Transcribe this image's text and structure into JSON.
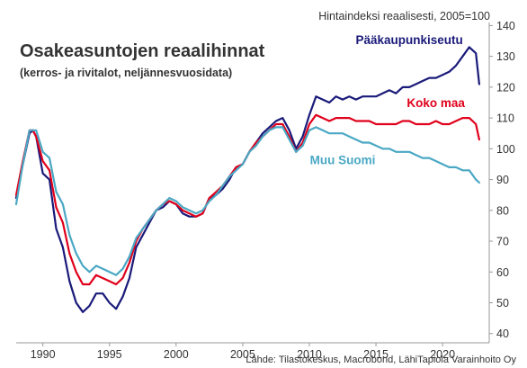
{
  "chart_data": {
    "type": "line",
    "title": "Osakeasuntojen reaalihinnat",
    "subtitle": "(kerros- ja rivitalot, neljännesvuosidata)",
    "ylabel": "Hintaindeksi reaalisesti, 2005=100",
    "source": "Lähde: Tilastokeskus, Macrobond, LähiTapiola Varainhoito Oy",
    "xlim": [
      1988,
      2023.5
    ],
    "ylim": [
      37,
      141
    ],
    "xticks": [
      1990,
      1995,
      2000,
      2005,
      2010,
      2015,
      2020
    ],
    "yticks": [
      40,
      50,
      60,
      70,
      80,
      90,
      100,
      110,
      120,
      130,
      140
    ],
    "y_axis_side": "right",
    "grid": false,
    "legend": "direct labels",
    "series": [
      {
        "name": "Pääkaupunkiseutu",
        "color": "#1a1a7a",
        "x": [
          1988.0,
          1988.5,
          1989.0,
          1989.25,
          1989.5,
          1990.0,
          1990.5,
          1991.0,
          1991.5,
          1992.0,
          1992.5,
          1993.0,
          1993.5,
          1994.0,
          1994.5,
          1995.0,
          1995.5,
          1996.0,
          1996.5,
          1997.0,
          1997.5,
          1998.0,
          1998.5,
          1999.0,
          1999.5,
          2000.0,
          2000.5,
          2001.0,
          2001.5,
          2002.0,
          2002.5,
          2003.0,
          2003.5,
          2004.0,
          2004.5,
          2005.0,
          2005.5,
          2006.0,
          2006.5,
          2007.0,
          2007.5,
          2008.0,
          2008.5,
          2009.0,
          2009.5,
          2010.0,
          2010.5,
          2011.0,
          2011.5,
          2012.0,
          2012.5,
          2013.0,
          2013.5,
          2014.0,
          2014.5,
          2015.0,
          2015.5,
          2016.0,
          2016.5,
          2017.0,
          2017.5,
          2018.0,
          2018.5,
          2019.0,
          2019.5,
          2020.0,
          2020.5,
          2021.0,
          2021.5,
          2022.0,
          2022.5,
          2022.75
        ],
        "values": [
          84,
          95,
          105,
          106,
          104,
          92,
          90,
          74,
          68,
          57,
          50,
          47,
          49,
          53,
          53,
          50,
          48,
          52,
          58,
          68,
          72,
          76,
          80,
          81,
          83,
          82,
          79,
          78,
          78,
          79,
          84,
          85,
          87,
          90,
          94,
          95,
          99,
          102,
          105,
          107,
          109,
          110,
          106,
          100,
          104,
          111,
          117,
          116,
          115,
          117,
          116,
          117,
          116,
          117,
          117,
          117,
          118,
          119,
          118,
          120,
          120,
          121,
          122,
          123,
          123,
          124,
          125,
          127,
          130,
          133,
          131,
          121
        ]
      },
      {
        "name": "Koko maa",
        "color": "#e0001b",
        "x": [
          1988.0,
          1988.5,
          1989.0,
          1989.25,
          1989.5,
          1990.0,
          1990.5,
          1991.0,
          1991.5,
          1992.0,
          1992.5,
          1993.0,
          1993.5,
          1994.0,
          1994.5,
          1995.0,
          1995.5,
          1996.0,
          1996.5,
          1997.0,
          1997.5,
          1998.0,
          1998.5,
          1999.0,
          1999.5,
          2000.0,
          2000.5,
          2001.0,
          2001.5,
          2002.0,
          2002.5,
          2003.0,
          2003.5,
          2004.0,
          2004.5,
          2005.0,
          2005.5,
          2006.0,
          2006.5,
          2007.0,
          2007.5,
          2008.0,
          2008.5,
          2009.0,
          2009.5,
          2010.0,
          2010.5,
          2011.0,
          2011.5,
          2012.0,
          2012.5,
          2013.0,
          2013.5,
          2014.0,
          2014.5,
          2015.0,
          2015.5,
          2016.0,
          2016.5,
          2017.0,
          2017.5,
          2018.0,
          2018.5,
          2019.0,
          2019.5,
          2020.0,
          2020.5,
          2021.0,
          2021.5,
          2022.0,
          2022.5,
          2022.75
        ],
        "values": [
          85,
          96,
          106,
          106,
          104,
          96,
          93,
          81,
          76,
          66,
          60,
          56,
          56,
          59,
          58,
          57,
          56,
          58,
          63,
          70,
          74,
          77,
          80,
          82,
          83,
          82,
          80,
          79,
          78,
          79,
          84,
          86,
          88,
          91,
          94,
          95,
          99,
          102,
          104,
          106,
          108,
          108,
          104,
          99,
          102,
          108,
          111,
          110,
          109,
          110,
          110,
          110,
          109,
          109,
          109,
          108,
          108,
          108,
          108,
          109,
          109,
          108,
          108,
          108,
          109,
          108,
          108,
          109,
          110,
          110,
          108,
          103
        ]
      },
      {
        "name": "Muu Suomi",
        "color": "#4aa8c4",
        "x": [
          1988.0,
          1988.5,
          1989.0,
          1989.25,
          1989.5,
          1990.0,
          1990.5,
          1991.0,
          1991.5,
          1992.0,
          1992.5,
          1993.0,
          1993.5,
          1994.0,
          1994.5,
          1995.0,
          1995.5,
          1996.0,
          1996.5,
          1997.0,
          1997.5,
          1998.0,
          1998.5,
          1999.0,
          1999.5,
          2000.0,
          2000.5,
          2001.0,
          2001.5,
          2002.0,
          2002.5,
          2003.0,
          2003.5,
          2004.0,
          2004.5,
          2005.0,
          2005.5,
          2006.0,
          2006.5,
          2007.0,
          2007.5,
          2008.0,
          2008.5,
          2009.0,
          2009.5,
          2010.0,
          2010.5,
          2011.0,
          2011.5,
          2012.0,
          2012.5,
          2013.0,
          2013.5,
          2014.0,
          2014.5,
          2015.0,
          2015.5,
          2016.0,
          2016.5,
          2017.0,
          2017.5,
          2018.0,
          2018.5,
          2019.0,
          2019.5,
          2020.0,
          2020.5,
          2021.0,
          2021.5,
          2022.0,
          2022.5,
          2022.75
        ],
        "values": [
          82,
          95,
          106,
          106,
          106,
          99,
          97,
          86,
          82,
          72,
          66,
          62,
          60,
          62,
          61,
          60,
          59,
          61,
          65,
          71,
          74,
          77,
          80,
          82,
          84,
          83,
          81,
          80,
          79,
          80,
          83,
          85,
          88,
          91,
          93,
          95,
          99,
          101,
          104,
          106,
          107,
          107,
          103,
          99,
          101,
          106,
          107,
          106,
          105,
          105,
          105,
          104,
          103,
          102,
          102,
          101,
          100,
          100,
          99,
          99,
          99,
          98,
          97,
          97,
          96,
          95,
          94,
          94,
          93,
          93,
          90,
          89
        ]
      }
    ],
    "label_positions": {
      "Pääkaupunkiseutu": [
        2017.5,
        134
      ],
      "Koko maa": [
        2019.5,
        113.5
      ],
      "Muu Suomi": [
        2012.5,
        95
      ]
    }
  }
}
